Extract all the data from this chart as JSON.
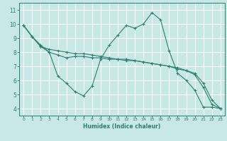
{
  "xlabel": "Humidex (Indice chaleur)",
  "ylabel": "",
  "background_color": "#c8e8e8",
  "grid_color": "#ffffff",
  "line_color": "#2e7d6e",
  "xlim": [
    -0.5,
    23.5
  ],
  "ylim": [
    3.5,
    11.5
  ],
  "xticks": [
    0,
    1,
    2,
    3,
    4,
    5,
    6,
    7,
    8,
    9,
    10,
    11,
    12,
    13,
    14,
    15,
    16,
    17,
    18,
    19,
    20,
    21,
    22,
    23
  ],
  "yticks": [
    4,
    5,
    6,
    7,
    8,
    9,
    10,
    11
  ],
  "line1_x": [
    0,
    1,
    2,
    3,
    4,
    5,
    6,
    7,
    8,
    9,
    10,
    11,
    12,
    13,
    14,
    15,
    16,
    17,
    18,
    19,
    20,
    21,
    22,
    23
  ],
  "line1_y": [
    9.9,
    9.1,
    8.5,
    8.0,
    6.3,
    5.8,
    5.2,
    4.9,
    5.6,
    7.5,
    8.5,
    9.2,
    9.9,
    9.7,
    10.0,
    10.8,
    10.3,
    8.1,
    6.5,
    6.0,
    5.3,
    4.1,
    4.1,
    4.0
  ],
  "line2_x": [
    0,
    1,
    2,
    3,
    4,
    5,
    6,
    7,
    8,
    9,
    10,
    11,
    12,
    13,
    14,
    15,
    16,
    17,
    18,
    19,
    20,
    21,
    22,
    23
  ],
  "line2_y": [
    9.9,
    9.1,
    8.4,
    8.0,
    7.8,
    7.6,
    7.7,
    7.7,
    7.6,
    7.6,
    7.5,
    7.5,
    7.4,
    7.4,
    7.3,
    7.2,
    7.1,
    7.0,
    6.8,
    6.7,
    6.4,
    5.5,
    4.3,
    4.0
  ],
  "line3_x": [
    0,
    1,
    2,
    3,
    4,
    5,
    6,
    7,
    8,
    9,
    10,
    11,
    12,
    13,
    14,
    15,
    16,
    17,
    18,
    19,
    20,
    21,
    22,
    23
  ],
  "line3_y": [
    9.9,
    9.1,
    8.4,
    8.2,
    8.1,
    8.0,
    7.9,
    7.9,
    7.8,
    7.7,
    7.6,
    7.5,
    7.5,
    7.4,
    7.3,
    7.2,
    7.1,
    7.0,
    6.9,
    6.7,
    6.5,
    5.8,
    4.6,
    4.0
  ]
}
